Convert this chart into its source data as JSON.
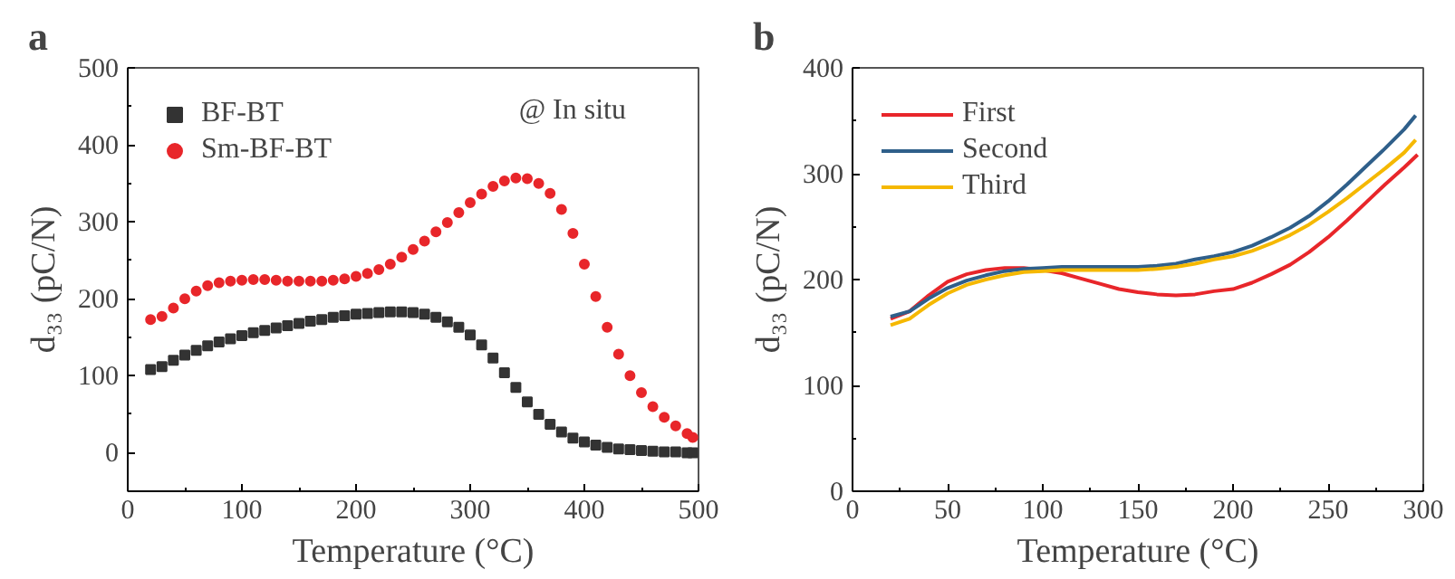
{
  "chart_data": [
    {
      "type": "scatter",
      "title": "a",
      "xlabel": "Temperature (°C)",
      "ylabel": "d₃₃ (pC/N)",
      "annotations": [
        "@ In situ"
      ],
      "xlim": [
        0,
        500
      ],
      "ylim": [
        -50,
        500
      ],
      "xticks": [
        0,
        100,
        200,
        300,
        400,
        500
      ],
      "yticks": [
        0,
        100,
        200,
        300,
        400,
        500
      ],
      "grid": false,
      "legend": "top left",
      "x": [
        20,
        30,
        40,
        50,
        60,
        70,
        80,
        90,
        100,
        110,
        120,
        130,
        140,
        150,
        160,
        170,
        180,
        190,
        200,
        210,
        220,
        230,
        240,
        250,
        260,
        270,
        280,
        290,
        300,
        310,
        320,
        330,
        340,
        350,
        360,
        370,
        380,
        390,
        400,
        410,
        420,
        430,
        440,
        450,
        460,
        470,
        480,
        490,
        495
      ],
      "series": [
        {
          "name": "BF-BT",
          "color": "#333333",
          "marker": "square",
          "values": [
            108,
            112,
            120,
            127,
            133,
            139,
            144,
            148,
            152,
            156,
            159,
            162,
            165,
            168,
            171,
            173,
            176,
            178,
            180,
            181,
            182,
            183,
            183,
            182,
            180,
            176,
            170,
            163,
            153,
            140,
            123,
            104,
            85,
            66,
            50,
            37,
            27,
            19,
            14,
            10,
            7,
            5,
            4,
            3,
            2,
            1,
            1,
            0,
            0
          ]
        },
        {
          "name": "Sm-BF-BT",
          "color": "#e8262a",
          "marker": "circle",
          "values": [
            173,
            177,
            188,
            200,
            210,
            217,
            221,
            223,
            224,
            225,
            225,
            224,
            223,
            223,
            223,
            223,
            224,
            226,
            229,
            233,
            238,
            245,
            254,
            264,
            275,
            287,
            299,
            312,
            325,
            336,
            346,
            353,
            357,
            356,
            350,
            337,
            316,
            285,
            245,
            203,
            163,
            128,
            100,
            78,
            60,
            46,
            35,
            25,
            20
          ]
        }
      ]
    },
    {
      "type": "line",
      "title": "b",
      "xlabel": "Temperature (°C)",
      "ylabel": "d₃₃ (pC/N)",
      "xlim": [
        0,
        300
      ],
      "ylim": [
        0,
        400
      ],
      "xticks": [
        0,
        50,
        100,
        150,
        200,
        250,
        300
      ],
      "yticks": [
        0,
        100,
        200,
        300,
        400
      ],
      "grid": false,
      "legend": "top left",
      "line_style": "solid",
      "marker": "none",
      "series": [
        {
          "name": "First",
          "color": "#e8262a",
          "x": [
            20,
            30,
            40,
            50,
            60,
            70,
            80,
            90,
            100,
            110,
            120,
            130,
            140,
            150,
            160,
            170,
            180,
            190,
            200,
            210,
            220,
            230,
            240,
            250,
            260,
            270,
            280,
            290,
            297
          ],
          "values": [
            163,
            170,
            185,
            198,
            205,
            209,
            211,
            211,
            209,
            206,
            201,
            196,
            191,
            188,
            186,
            185,
            186,
            189,
            191,
            197,
            205,
            214,
            226,
            240,
            256,
            273,
            290,
            306,
            318
          ]
        },
        {
          "name": "Second",
          "color": "#2f5f8a",
          "x": [
            20,
            30,
            40,
            50,
            60,
            70,
            80,
            90,
            100,
            110,
            120,
            130,
            140,
            150,
            160,
            170,
            180,
            190,
            200,
            210,
            220,
            230,
            240,
            250,
            260,
            270,
            280,
            290,
            296
          ],
          "values": [
            165,
            170,
            182,
            192,
            199,
            204,
            208,
            210,
            211,
            212,
            212,
            212,
            212,
            212,
            213,
            215,
            219,
            222,
            226,
            232,
            240,
            249,
            260,
            274,
            290,
            307,
            324,
            342,
            355
          ]
        },
        {
          "name": "Third",
          "color": "#f5b800",
          "x": [
            20,
            30,
            40,
            50,
            60,
            70,
            80,
            90,
            100,
            110,
            120,
            130,
            140,
            150,
            160,
            170,
            180,
            190,
            200,
            210,
            220,
            230,
            240,
            250,
            260,
            270,
            280,
            290,
            296
          ],
          "values": [
            157,
            163,
            176,
            187,
            195,
            200,
            204,
            207,
            208,
            209,
            209,
            209,
            209,
            209,
            210,
            212,
            215,
            219,
            222,
            227,
            234,
            242,
            252,
            264,
            277,
            291,
            305,
            320,
            332
          ]
        }
      ]
    }
  ]
}
